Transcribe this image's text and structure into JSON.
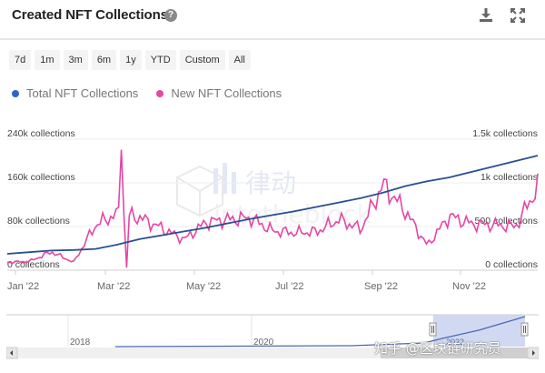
{
  "header": {
    "title": "Created NFT Collections",
    "help_icon": "question-circle-icon",
    "download_icon": "download-icon",
    "expand_icon": "fullscreen-icon"
  },
  "ranges": [
    "7d",
    "1m",
    "3m",
    "6m",
    "1y",
    "YTD",
    "Custom",
    "All"
  ],
  "legend": [
    {
      "label": "Total NFT Collections",
      "color": "#2f64c8"
    },
    {
      "label": "New NFT Collections",
      "color": "#e447a5"
    }
  ],
  "navigator": {
    "year_labels": [
      "2018",
      "2020",
      "2022"
    ],
    "left_arrow": "◂",
    "right_arrow": "▸"
  },
  "watermarks": {
    "logo_text": "律动",
    "logo_sub": "intotheblock",
    "zh": "知乎 @区块链研究员"
  },
  "chart_data": {
    "type": "line",
    "title": "Created NFT Collections",
    "xlabel": "",
    "ylabel_left": "Total NFT Collections",
    "ylabel_right": "New NFT Collections",
    "x_ticks": [
      "Jan '22",
      "Mar '22",
      "May '22",
      "Jul '22",
      "Sep '22",
      "Nov '22"
    ],
    "y_left_ticks": [
      "0 collections",
      "80k collections",
      "160k collections",
      "240k collections"
    ],
    "y_left_range": [
      0,
      240000
    ],
    "y_right_ticks": [
      "0 collections",
      "500 collections",
      "1k collections",
      "1.5k collections"
    ],
    "y_right_range": [
      0,
      1500
    ],
    "grid": true,
    "legend_position": "top-left",
    "x": [
      "2022-01-01",
      "2022-01-15",
      "2022-02-01",
      "2022-02-15",
      "2022-03-01",
      "2022-03-15",
      "2022-04-01",
      "2022-04-15",
      "2022-05-01",
      "2022-05-15",
      "2022-06-01",
      "2022-06-15",
      "2022-07-01",
      "2022-07-15",
      "2022-08-01",
      "2022-08-15",
      "2022-09-01",
      "2022-09-15",
      "2022-10-01",
      "2022-10-15",
      "2022-11-01",
      "2022-11-15",
      "2022-12-01",
      "2022-12-15",
      "2022-12-31"
    ],
    "series": [
      {
        "name": "Total NFT Collections",
        "axis": "left",
        "color": "#2f64c8",
        "values": [
          30000,
          33000,
          36000,
          37000,
          39000,
          47000,
          57000,
          64000,
          71000,
          78000,
          86000,
          94000,
          101000,
          108000,
          116000,
          124000,
          132000,
          142000,
          154000,
          163000,
          170000,
          180000,
          190000,
          200000,
          210000
        ]
      },
      {
        "name": "New NFT Collections",
        "axis": "right",
        "color": "#e447a5",
        "values": [
          90,
          100,
          210,
          90,
          520,
          650,
          600,
          480,
          350,
          550,
          580,
          600,
          450,
          430,
          440,
          580,
          470,
          980,
          680,
          280,
          620,
          530,
          520,
          500,
          950
        ]
      }
    ]
  }
}
